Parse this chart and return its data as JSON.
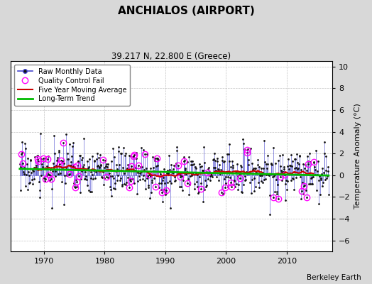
{
  "title": "ANCHIALOS (AIRPORT)",
  "subtitle": "39.217 N, 22.800 E (Greece)",
  "ylabel": "Temperature Anomaly (°C)",
  "attribution": "Berkeley Earth",
  "ylim": [
    -7,
    10.5
  ],
  "yticks": [
    -6,
    -4,
    -2,
    0,
    2,
    4,
    6,
    8,
    10
  ],
  "xlim": [
    1964.5,
    2017.5
  ],
  "xticks": [
    1970,
    1980,
    1990,
    2000,
    2010
  ],
  "fig_bg_color": "#d8d8d8",
  "plot_bg_color": "#ffffff",
  "stem_color": "#4444cc",
  "dot_color": "#111111",
  "qc_color": "#ff00ff",
  "moving_avg_color": "#cc0000",
  "trend_color": "#00bb00",
  "trend_slope": -0.012,
  "trend_at_1990": 0.3,
  "noise_std": 1.5,
  "seed": 17
}
